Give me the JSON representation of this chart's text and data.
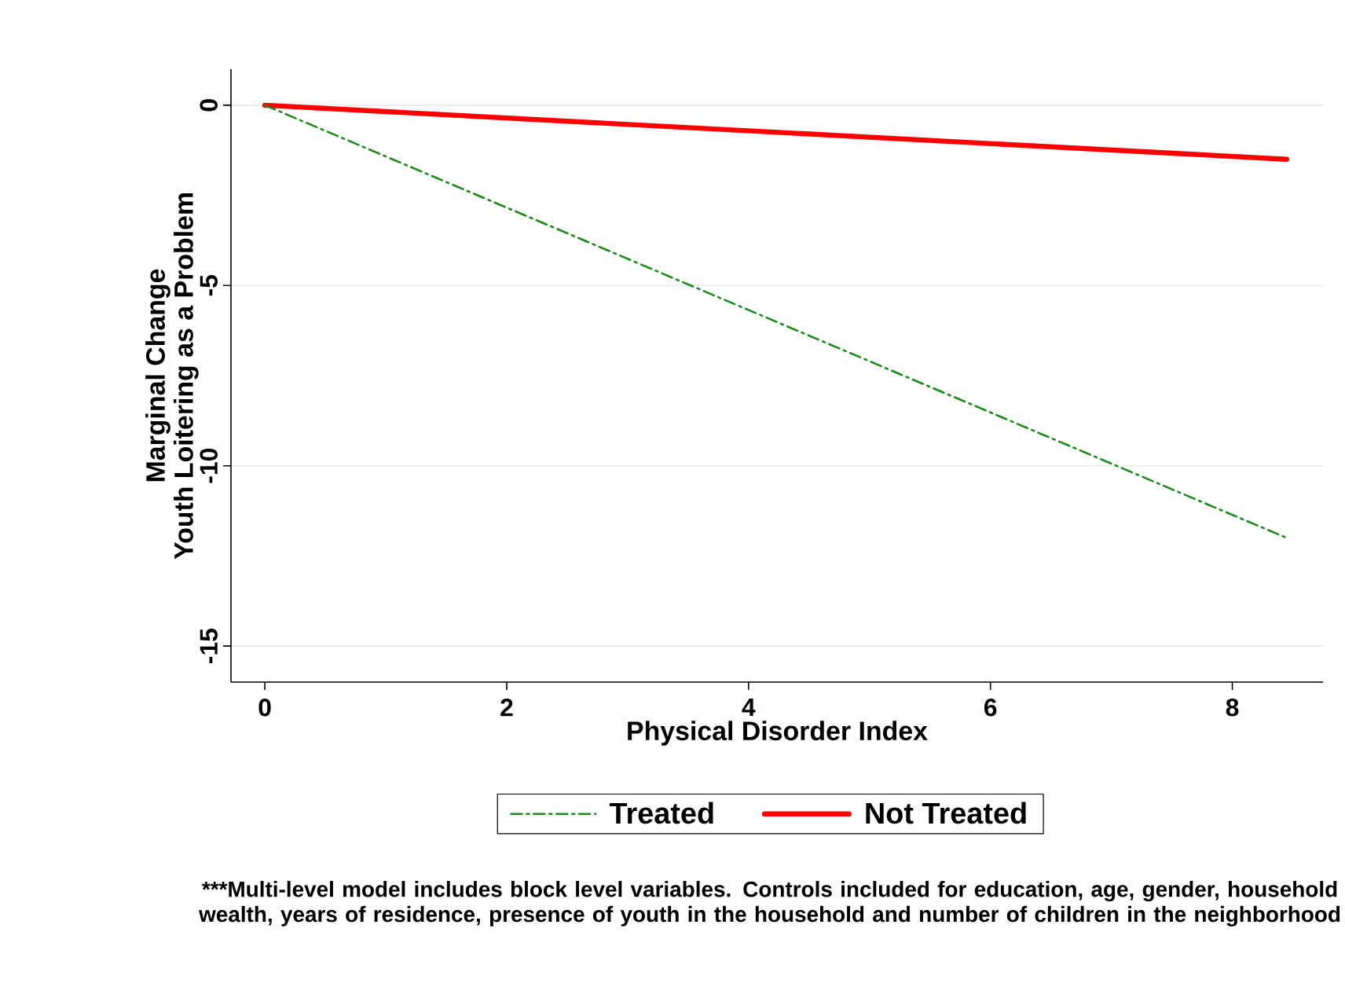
{
  "chart_data": {
    "type": "line",
    "xlabel": "Physical Disorder Index",
    "ylabel": "Marginal Change\nYouth Loitering as a Problem",
    "x": [
      0,
      8.45
    ],
    "series": [
      {
        "name": "Treated",
        "color": "#1a8a1a",
        "values": [
          0,
          -12
        ],
        "line_style": "dashdot"
      },
      {
        "name": "Not Treated",
        "color": "#ff0000",
        "values": [
          0,
          -1.5
        ],
        "line_style": "solid"
      }
    ],
    "xlim": [
      -0.28,
      8.75
    ],
    "ylim": [
      -16,
      1
    ],
    "xticks": [
      0,
      2,
      4,
      6,
      8
    ],
    "yticks": [
      -15,
      -10,
      -5,
      0
    ],
    "grid": "y",
    "legend": "bottom",
    "marker": "none",
    "annotations": [
      "***Multi-level model includes block level variables.  Controls included for education, age, gender, household wealth, years of residence, presence of youth in the household and number of children in the neighborhood"
    ]
  }
}
